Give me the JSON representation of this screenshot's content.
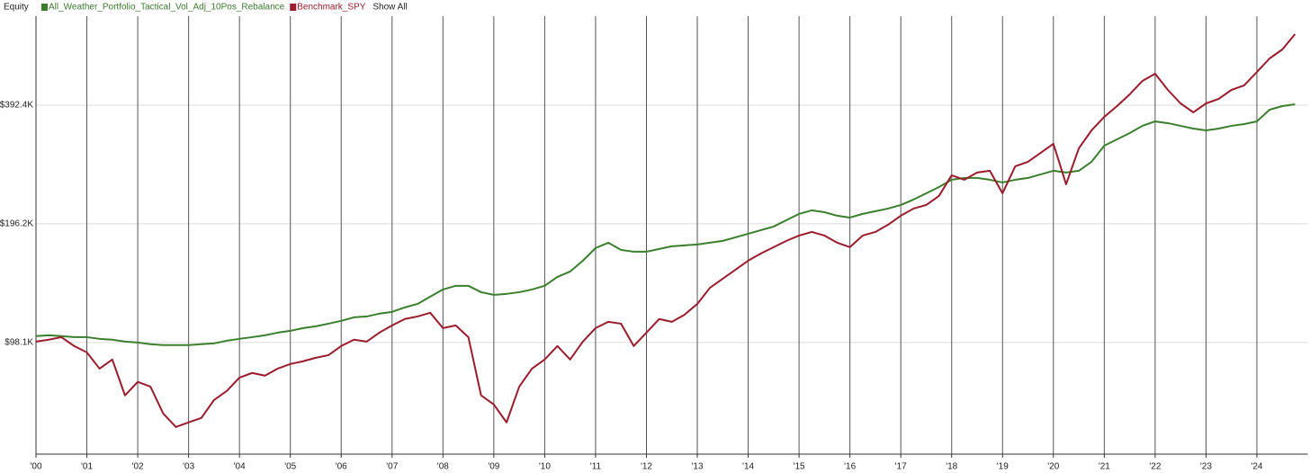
{
  "chart_data": {
    "type": "line",
    "title": "Equity",
    "legend_extra": "Show All",
    "y_scale": "log",
    "grid": true,
    "xlim": [
      2000,
      2025
    ],
    "ylim": [
      51100,
      660000
    ],
    "xticks": [
      {
        "value": 2000,
        "label": "'00"
      },
      {
        "value": 2001,
        "label": "'01"
      },
      {
        "value": 2002,
        "label": "'02"
      },
      {
        "value": 2003,
        "label": "'03"
      },
      {
        "value": 2004,
        "label": "'04"
      },
      {
        "value": 2005,
        "label": "'05"
      },
      {
        "value": 2006,
        "label": "'06"
      },
      {
        "value": 2007,
        "label": "'07"
      },
      {
        "value": 2008,
        "label": "'08"
      },
      {
        "value": 2009,
        "label": "'09"
      },
      {
        "value": 2010,
        "label": "'10"
      },
      {
        "value": 2011,
        "label": "'11"
      },
      {
        "value": 2012,
        "label": "'12"
      },
      {
        "value": 2013,
        "label": "'13"
      },
      {
        "value": 2014,
        "label": "'14"
      },
      {
        "value": 2015,
        "label": "'15"
      },
      {
        "value": 2016,
        "label": "'16"
      },
      {
        "value": 2017,
        "label": "'17"
      },
      {
        "value": 2018,
        "label": "'18"
      },
      {
        "value": 2019,
        "label": "'19"
      },
      {
        "value": 2020,
        "label": "'20"
      },
      {
        "value": 2021,
        "label": "'21"
      },
      {
        "value": 2022,
        "label": "'22"
      },
      {
        "value": 2023,
        "label": "'23"
      },
      {
        "value": 2024,
        "label": "'24"
      }
    ],
    "yticks": [
      {
        "value": 98100,
        "label": "$98.1K"
      },
      {
        "value": 196200,
        "label": "$196.2K"
      },
      {
        "value": 392400,
        "label": "$392.4K"
      }
    ],
    "x": [
      2000,
      2000.25,
      2000.5,
      2000.75,
      2001,
      2001.25,
      2001.5,
      2001.75,
      2002,
      2002.25,
      2002.5,
      2002.75,
      2003,
      2003.25,
      2003.5,
      2003.75,
      2004,
      2004.25,
      2004.5,
      2004.75,
      2005,
      2005.25,
      2005.5,
      2005.75,
      2006,
      2006.25,
      2006.5,
      2006.75,
      2007,
      2007.25,
      2007.5,
      2007.75,
      2008,
      2008.25,
      2008.5,
      2008.75,
      2009,
      2009.25,
      2009.5,
      2009.75,
      2010,
      2010.25,
      2010.5,
      2010.75,
      2011,
      2011.25,
      2011.5,
      2011.75,
      2012,
      2012.25,
      2012.5,
      2012.75,
      2013,
      2013.25,
      2013.5,
      2013.75,
      2014,
      2014.25,
      2014.5,
      2014.75,
      2015,
      2015.25,
      2015.5,
      2015.75,
      2016,
      2016.25,
      2016.5,
      2016.75,
      2017,
      2017.25,
      2017.5,
      2017.75,
      2018,
      2018.25,
      2018.5,
      2018.75,
      2019,
      2019.25,
      2019.5,
      2019.75,
      2020,
      2020.25,
      2020.5,
      2020.75,
      2021,
      2021.25,
      2021.5,
      2021.75,
      2022,
      2022.25,
      2022.5,
      2022.75,
      2023,
      2023.25,
      2023.5,
      2023.75,
      2024,
      2024.25,
      2024.5,
      2024.75
    ],
    "series": [
      {
        "name": "All_Weather_Portfolio_Tactical_Vol_Adj_10Pos_Rebalance",
        "color": "#3b7f2e",
        "values": [
          101800,
          102300,
          101800,
          101200,
          101200,
          100200,
          99700,
          98600,
          98100,
          97100,
          96600,
          96600,
          96600,
          97100,
          97600,
          99100,
          100200,
          101200,
          102300,
          103900,
          105000,
          106700,
          107800,
          109500,
          111300,
          113600,
          114200,
          116100,
          117300,
          120400,
          122900,
          128200,
          133700,
          136600,
          136600,
          131600,
          129600,
          130300,
          131600,
          133700,
          136600,
          143900,
          148500,
          158200,
          170300,
          175700,
          168500,
          166700,
          166700,
          169400,
          172100,
          173000,
          173900,
          175700,
          177600,
          181300,
          185200,
          189100,
          193100,
          200400,
          207900,
          212300,
          210000,
          205700,
          203500,
          207900,
          211200,
          214500,
          219100,
          226100,
          234500,
          243300,
          253800,
          256500,
          256500,
          253800,
          249800,
          253800,
          256500,
          261900,
          267500,
          264700,
          267500,
          281900,
          309800,
          321400,
          333400,
          347800,
          357000,
          353300,
          347800,
          342300,
          338700,
          342300,
          347800,
          351400,
          357000,
          382200,
          390300,
          394500
        ]
      },
      {
        "name": "Benchmark_SPY",
        "color": "#9b1c2c",
        "values": [
          98600,
          99700,
          101200,
          96100,
          92600,
          84200,
          88800,
          72000,
          77900,
          75800,
          64800,
          59900,
          61500,
          63100,
          70100,
          73900,
          79900,
          82100,
          80800,
          84200,
          86500,
          87900,
          89700,
          91100,
          96100,
          99700,
          98600,
          103900,
          108400,
          112500,
          114200,
          116700,
          106700,
          108400,
          101200,
          72000,
          68300,
          61500,
          75800,
          84200,
          88800,
          96100,
          88800,
          98600,
          106700,
          110700,
          109500,
          96100,
          103900,
          112500,
          110700,
          115400,
          122900,
          135100,
          142400,
          150100,
          158200,
          165000,
          171200,
          177600,
          183200,
          187100,
          183200,
          175700,
          171200,
          183200,
          187100,
          195200,
          205700,
          214500,
          219100,
          230900,
          260500,
          253800,
          264700,
          267500,
          234500,
          274600,
          281900,
          297100,
          313100,
          247200,
          305000,
          338700,
          366500,
          390300,
          417900,
          452200,
          471600,
          429000,
          396500,
          376300,
          396500,
          407100,
          429000,
          440500,
          476500,
          515600,
          543400,
          594200
        ]
      }
    ]
  }
}
